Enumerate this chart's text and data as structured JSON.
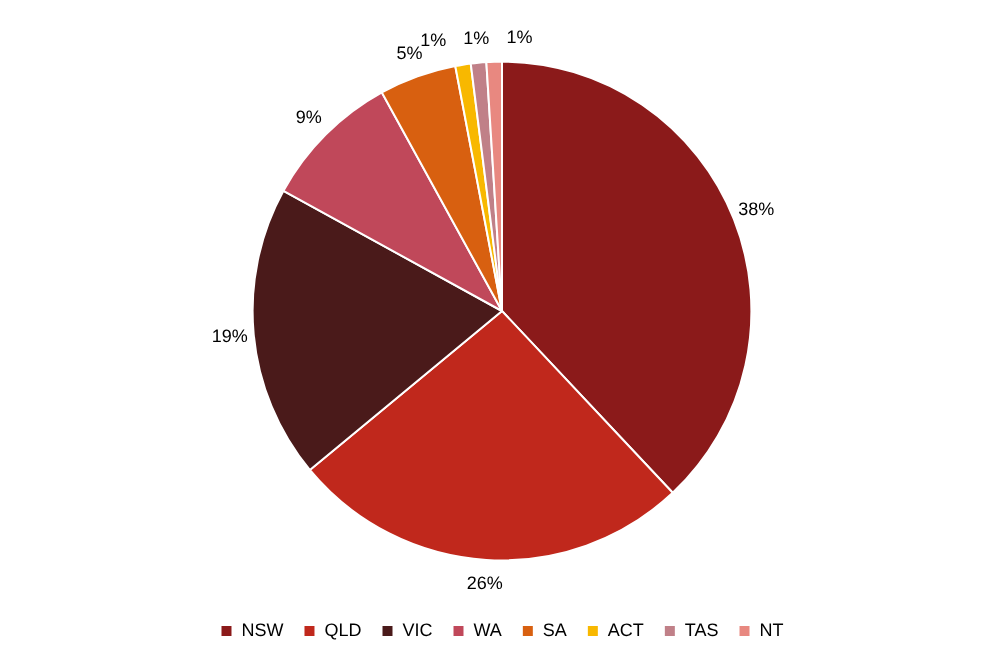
{
  "chart_data": {
    "type": "pie",
    "categories": [
      "NSW",
      "QLD",
      "VIC",
      "WA",
      "SA",
      "ACT",
      "TAS",
      "NT"
    ],
    "values": [
      38,
      26,
      19,
      9,
      5,
      1,
      1,
      1
    ],
    "colors": [
      "#8b1a1a",
      "#c0281c",
      "#4a1a1a",
      "#c0485a",
      "#d86010",
      "#f8b800",
      "#c08088",
      "#e88880"
    ],
    "value_labels": [
      "38%",
      "26%",
      "19%",
      "9%",
      "5%",
      "1%",
      "1%",
      "1%"
    ],
    "legend": "bottom"
  }
}
